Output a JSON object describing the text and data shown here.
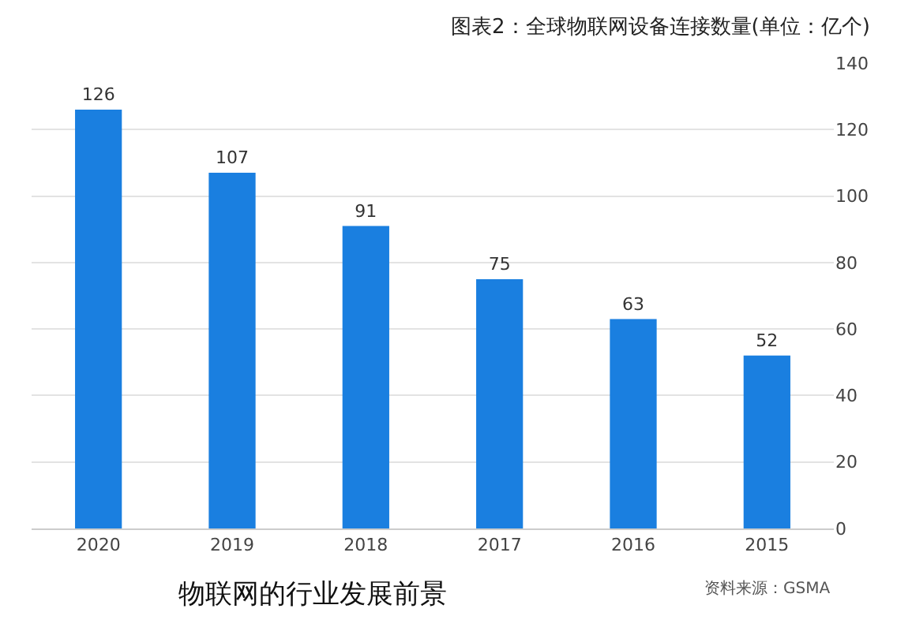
{
  "chart_data": {
    "type": "bar",
    "title": "图表2：全球物联网设备连接数量(单位：亿个)",
    "categories": [
      "2020",
      "2019",
      "2018",
      "2017",
      "2016",
      "2015"
    ],
    "values": [
      126,
      107,
      91,
      75,
      63,
      52
    ],
    "color": "#1a7fe0",
    "ylim": [
      0,
      140
    ],
    "yticks": [
      0,
      20,
      40,
      60,
      80,
      100,
      120,
      140
    ],
    "grid": "y",
    "data_labels": true,
    "annotations": [
      "资料来源：GSMA",
      "物联网的行业发展前景"
    ]
  }
}
